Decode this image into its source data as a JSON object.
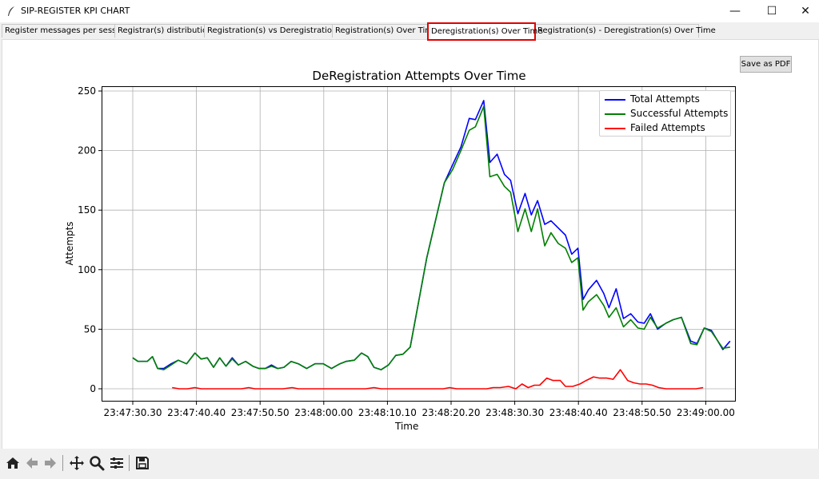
{
  "window": {
    "title": "SIP-REGISTER KPI CHART",
    "minimize": "—",
    "maximize": "☐",
    "close": "✕"
  },
  "tabs": [
    {
      "label": "Register messages per session",
      "selected": false
    },
    {
      "label": "Registrar(s) distribution",
      "selected": false
    },
    {
      "label": "Registration(s) vs Deregistration(s)",
      "selected": false
    },
    {
      "label": "Registration(s) Over Time",
      "selected": false
    },
    {
      "label": "Deregistration(s) Over Time",
      "selected": true
    },
    {
      "label": "Registration(s) - Deregistration(s) Over Time",
      "selected": false
    }
  ],
  "save_pdf_label": "Save as PDF",
  "toolbar": {
    "icons": [
      "home-icon",
      "back-arrow-icon",
      "forward-arrow-icon",
      "pan-icon",
      "zoom-icon",
      "configure-subplots-icon",
      "save-icon"
    ]
  },
  "chart_data": {
    "type": "line",
    "title": "DeRegistration Attempts Over Time",
    "xlabel": "Time",
    "ylabel": "Attempts",
    "x_tick_labels": [
      "23:47:30.30",
      "23:47:40.40",
      "23:47:50.50",
      "23:48:00.00",
      "23:48:10.10",
      "23:48:20.20",
      "23:48:30.30",
      "23:48:40.40",
      "23:48:50.50",
      "23:49:00.00"
    ],
    "y_ticks": [
      0,
      50,
      100,
      150,
      200,
      250
    ],
    "ylim": [
      -12,
      250
    ],
    "grid": true,
    "legend_position": "top-right",
    "series": [
      {
        "name": "Total Attempts",
        "color": "#0000ff",
        "points": [
          [
            0,
            26
          ],
          [
            0.5,
            23
          ],
          [
            1.4,
            23
          ],
          [
            1.9,
            27
          ],
          [
            2.4,
            17
          ],
          [
            3,
            17
          ],
          [
            3.7,
            21
          ],
          [
            4.4,
            24
          ],
          [
            5.2,
            21
          ],
          [
            6,
            30
          ],
          [
            6.6,
            25
          ],
          [
            7.2,
            26
          ],
          [
            7.8,
            18
          ],
          [
            8.4,
            26
          ],
          [
            9,
            19
          ],
          [
            9.6,
            26
          ],
          [
            10.2,
            20
          ],
          [
            10.9,
            23
          ],
          [
            11.6,
            19
          ],
          [
            12.2,
            17
          ],
          [
            12.8,
            17
          ],
          [
            13.4,
            20
          ],
          [
            14,
            17
          ],
          [
            14.6,
            18
          ],
          [
            15.3,
            23
          ],
          [
            16,
            21
          ],
          [
            16.8,
            17
          ],
          [
            17.6,
            21
          ],
          [
            18.4,
            21
          ],
          [
            19.2,
            17
          ],
          [
            20,
            21
          ],
          [
            20.6,
            23
          ],
          [
            21.4,
            24
          ],
          [
            22.1,
            30
          ],
          [
            22.7,
            27
          ],
          [
            23.3,
            18
          ],
          [
            24,
            16
          ],
          [
            24.7,
            20
          ],
          [
            25.4,
            28
          ],
          [
            26.1,
            29
          ],
          [
            26.8,
            35
          ],
          [
            28.4,
            110
          ],
          [
            30.1,
            173
          ],
          [
            30.9,
            188
          ],
          [
            31.7,
            203
          ],
          [
            32.5,
            227
          ],
          [
            33.1,
            226
          ],
          [
            33.9,
            242
          ],
          [
            34.5,
            190
          ],
          [
            35.2,
            197
          ],
          [
            35.9,
            180
          ],
          [
            36.5,
            175
          ],
          [
            37.2,
            147
          ],
          [
            37.9,
            164
          ],
          [
            38.5,
            146
          ],
          [
            39.1,
            158
          ],
          [
            39.8,
            138
          ],
          [
            40.4,
            141
          ],
          [
            41.1,
            135
          ],
          [
            41.8,
            129
          ],
          [
            42.4,
            113
          ],
          [
            43,
            118
          ],
          [
            43.5,
            75
          ],
          [
            44,
            83
          ],
          [
            44.8,
            91
          ],
          [
            45.5,
            80
          ],
          [
            46,
            68
          ],
          [
            46.7,
            84
          ],
          [
            47.4,
            59
          ],
          [
            48.1,
            63
          ],
          [
            48.8,
            56
          ],
          [
            49.4,
            55
          ],
          [
            50,
            63
          ],
          [
            50.7,
            50
          ],
          [
            51.5,
            55
          ],
          [
            52.2,
            58
          ],
          [
            53,
            60
          ],
          [
            53.9,
            40
          ],
          [
            54.5,
            38
          ],
          [
            55.2,
            51
          ],
          [
            55.9,
            49
          ],
          [
            57,
            33
          ],
          [
            57.7,
            40
          ]
        ]
      },
      {
        "name": "Successful Attempts",
        "color": "#008000",
        "points": [
          [
            0,
            26
          ],
          [
            0.5,
            23
          ],
          [
            1.4,
            23
          ],
          [
            1.9,
            27
          ],
          [
            2.4,
            17
          ],
          [
            3,
            16
          ],
          [
            3.7,
            20
          ],
          [
            4.4,
            24
          ],
          [
            5.2,
            21
          ],
          [
            6,
            30
          ],
          [
            6.6,
            25
          ],
          [
            7.2,
            26
          ],
          [
            7.8,
            18
          ],
          [
            8.4,
            26
          ],
          [
            9,
            19
          ],
          [
            9.6,
            25
          ],
          [
            10.2,
            20
          ],
          [
            10.9,
            23
          ],
          [
            11.6,
            19
          ],
          [
            12.2,
            17
          ],
          [
            12.8,
            17
          ],
          [
            13.4,
            19
          ],
          [
            14,
            17
          ],
          [
            14.6,
            18
          ],
          [
            15.3,
            23
          ],
          [
            16,
            21
          ],
          [
            16.8,
            17
          ],
          [
            17.6,
            21
          ],
          [
            18.4,
            21
          ],
          [
            19.2,
            17
          ],
          [
            20,
            21
          ],
          [
            20.6,
            23
          ],
          [
            21.4,
            24
          ],
          [
            22.1,
            30
          ],
          [
            22.7,
            27
          ],
          [
            23.3,
            18
          ],
          [
            24,
            16
          ],
          [
            24.7,
            20
          ],
          [
            25.4,
            28
          ],
          [
            26.1,
            29
          ],
          [
            26.8,
            35
          ],
          [
            28.4,
            110
          ],
          [
            30.1,
            173
          ],
          [
            30.9,
            184
          ],
          [
            31.7,
            200
          ],
          [
            32.5,
            217
          ],
          [
            33.1,
            220
          ],
          [
            33.9,
            237
          ],
          [
            34.5,
            178
          ],
          [
            35.2,
            180
          ],
          [
            35.9,
            170
          ],
          [
            36.5,
            165
          ],
          [
            37.2,
            132
          ],
          [
            37.9,
            151
          ],
          [
            38.5,
            132
          ],
          [
            39.1,
            151
          ],
          [
            39.8,
            120
          ],
          [
            40.4,
            131
          ],
          [
            41.1,
            122
          ],
          [
            41.8,
            118
          ],
          [
            42.4,
            106
          ],
          [
            43,
            110
          ],
          [
            43.5,
            66
          ],
          [
            44,
            73
          ],
          [
            44.8,
            79
          ],
          [
            45.5,
            70
          ],
          [
            46,
            60
          ],
          [
            46.7,
            68
          ],
          [
            47.4,
            52
          ],
          [
            48.1,
            58
          ],
          [
            48.8,
            51
          ],
          [
            49.4,
            50
          ],
          [
            50,
            60
          ],
          [
            50.7,
            51
          ],
          [
            51.5,
            55
          ],
          [
            52.2,
            58
          ],
          [
            53,
            60
          ],
          [
            53.9,
            38
          ],
          [
            54.5,
            37
          ],
          [
            55.2,
            51
          ],
          [
            55.9,
            48
          ],
          [
            57,
            34
          ],
          [
            57.7,
            35
          ]
        ]
      },
      {
        "name": "Failed Attempts",
        "color": "#ff0000",
        "points": [
          [
            3.8,
            1
          ],
          [
            4.5,
            0
          ],
          [
            5.3,
            0
          ],
          [
            6,
            1
          ],
          [
            6.6,
            0
          ],
          [
            8,
            0
          ],
          [
            10.5,
            0
          ],
          [
            11.2,
            1
          ],
          [
            11.8,
            0
          ],
          [
            14.5,
            0
          ],
          [
            15.4,
            1
          ],
          [
            16,
            0
          ],
          [
            20,
            0
          ],
          [
            22.5,
            0
          ],
          [
            23.3,
            1
          ],
          [
            24,
            0
          ],
          [
            30,
            0
          ],
          [
            30.6,
            1
          ],
          [
            31.3,
            0
          ],
          [
            34.2,
            0
          ],
          [
            34.8,
            1
          ],
          [
            35.5,
            1
          ],
          [
            36.3,
            2
          ],
          [
            37,
            0
          ],
          [
            37.6,
            4
          ],
          [
            38.2,
            1
          ],
          [
            38.8,
            3
          ],
          [
            39.3,
            3
          ],
          [
            40,
            9
          ],
          [
            40.6,
            7
          ],
          [
            41.3,
            7
          ],
          [
            41.8,
            2
          ],
          [
            42.5,
            2
          ],
          [
            43.2,
            4
          ],
          [
            43.8,
            7
          ],
          [
            44.5,
            10
          ],
          [
            45.1,
            9
          ],
          [
            45.8,
            9
          ],
          [
            46.4,
            8
          ],
          [
            47.1,
            16
          ],
          [
            47.8,
            7
          ],
          [
            48.4,
            5
          ],
          [
            49,
            4
          ],
          [
            49.6,
            4
          ],
          [
            50.2,
            3
          ],
          [
            50.8,
            1
          ],
          [
            51.5,
            0
          ],
          [
            52.2,
            0
          ],
          [
            53.1,
            0
          ],
          [
            53.8,
            0
          ],
          [
            54.4,
            0
          ],
          [
            55.1,
            1
          ]
        ]
      }
    ]
  }
}
